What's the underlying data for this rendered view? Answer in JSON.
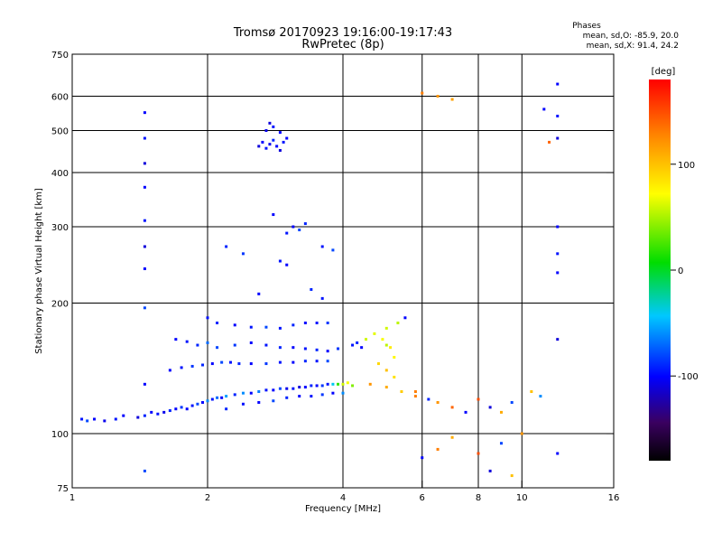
{
  "chart_data": {
    "type": "scatter",
    "title": "Tromsø 20170923 19:16:00-19:17:43",
    "subtitle": "RwPretec (8p)",
    "xlabel": "Frequency [MHz]",
    "ylabel": "Stationary phase Virtual Height [km]",
    "x_scale": "log",
    "y_scale": "log",
    "xlim": [
      1,
      16
    ],
    "ylim": [
      75,
      750
    ],
    "x_ticks": [
      1,
      2,
      4,
      6,
      8,
      10,
      16
    ],
    "y_ticks": [
      75,
      100,
      200,
      300,
      400,
      500,
      600,
      750
    ],
    "x_grid": [
      2,
      4,
      6,
      8,
      10
    ],
    "y_grid": [
      100,
      200,
      300,
      400,
      500,
      600
    ],
    "stats": {
      "heading": "Phases",
      "line1": "mean, sd,O: -85.9, 20.0",
      "line2": "mean, sd,X:  91.4, 24.2"
    },
    "colorbar": {
      "label": "[deg]",
      "range": [
        -180,
        180
      ],
      "ticks": [
        100,
        0,
        -100
      ]
    },
    "series": [
      {
        "points": [
          [
            1.05,
            108,
            -95
          ],
          [
            1.08,
            107,
            -80
          ],
          [
            1.12,
            108,
            -100
          ],
          [
            1.18,
            107,
            -105
          ],
          [
            1.25,
            108,
            -95
          ],
          [
            1.3,
            110,
            -100
          ],
          [
            1.4,
            109,
            -110
          ],
          [
            1.45,
            110,
            -90
          ],
          [
            1.5,
            112,
            -100
          ],
          [
            1.55,
            111,
            -95
          ],
          [
            1.6,
            112,
            -105
          ],
          [
            1.65,
            113,
            -90
          ],
          [
            1.7,
            114,
            -100
          ],
          [
            1.75,
            115,
            -85
          ],
          [
            1.8,
            114,
            -100
          ],
          [
            1.85,
            116,
            -95
          ],
          [
            1.9,
            117,
            -80
          ],
          [
            1.95,
            118,
            -100
          ],
          [
            2.0,
            119,
            -60
          ],
          [
            2.05,
            120,
            -95
          ],
          [
            2.1,
            121,
            -70
          ],
          [
            2.15,
            121,
            -100
          ],
          [
            2.2,
            122,
            -55
          ],
          [
            2.3,
            123,
            -90
          ],
          [
            2.4,
            124,
            -60
          ],
          [
            2.5,
            124,
            -100
          ],
          [
            2.6,
            125,
            -65
          ],
          [
            2.7,
            126,
            -95
          ],
          [
            2.8,
            126,
            -100
          ],
          [
            2.9,
            127,
            -80
          ],
          [
            3.0,
            127,
            -105
          ],
          [
            3.1,
            127,
            -95
          ],
          [
            3.2,
            128,
            -110
          ],
          [
            3.3,
            128,
            -100
          ],
          [
            3.4,
            129,
            -90
          ],
          [
            3.5,
            129,
            -100
          ],
          [
            3.6,
            129,
            -85
          ],
          [
            3.7,
            130,
            -95
          ],
          [
            3.8,
            130,
            -40
          ],
          [
            3.9,
            130,
            20
          ],
          [
            4.0,
            130,
            60
          ],
          [
            4.1,
            131,
            70
          ],
          [
            4.2,
            129,
            40
          ],
          [
            2.2,
            114,
            -90
          ],
          [
            2.4,
            117,
            -95
          ],
          [
            2.6,
            118,
            -100
          ],
          [
            2.8,
            119,
            -80
          ],
          [
            3.0,
            121,
            -90
          ],
          [
            3.2,
            122,
            -100
          ],
          [
            3.4,
            122,
            -95
          ],
          [
            3.6,
            123,
            -85
          ],
          [
            3.8,
            124,
            -100
          ],
          [
            4.0,
            124,
            -60
          ],
          [
            1.65,
            140,
            -100
          ],
          [
            1.75,
            142,
            -95
          ],
          [
            1.85,
            143,
            -85
          ],
          [
            1.95,
            144,
            -90
          ],
          [
            2.05,
            145,
            -100
          ],
          [
            2.15,
            146,
            -80
          ],
          [
            2.25,
            146,
            -95
          ],
          [
            2.35,
            145,
            -90
          ],
          [
            2.5,
            145,
            -100
          ],
          [
            2.7,
            145,
            -85
          ],
          [
            2.9,
            146,
            -95
          ],
          [
            3.1,
            146,
            -100
          ],
          [
            3.3,
            147,
            -90
          ],
          [
            3.5,
            147,
            -95
          ],
          [
            3.7,
            147,
            -80
          ],
          [
            1.7,
            165,
            -100
          ],
          [
            1.8,
            163,
            -95
          ],
          [
            1.9,
            160,
            -90
          ],
          [
            2.0,
            162,
            -70
          ],
          [
            2.1,
            158,
            -80
          ],
          [
            2.3,
            160,
            -85
          ],
          [
            2.5,
            162,
            -100
          ],
          [
            2.7,
            160,
            -95
          ],
          [
            2.9,
            158,
            -90
          ],
          [
            3.1,
            158,
            -100
          ],
          [
            3.3,
            157,
            -95
          ],
          [
            3.5,
            156,
            -90
          ],
          [
            3.7,
            155,
            -100
          ],
          [
            3.9,
            157,
            -85
          ],
          [
            2.0,
            185,
            -95
          ],
          [
            2.1,
            180,
            -90
          ],
          [
            2.3,
            178,
            -100
          ],
          [
            2.5,
            176,
            -95
          ],
          [
            2.7,
            176,
            -80
          ],
          [
            2.9,
            175,
            -95
          ],
          [
            3.1,
            178,
            -90
          ],
          [
            3.3,
            180,
            -100
          ],
          [
            3.5,
            180,
            -95
          ],
          [
            3.7,
            180,
            -85
          ],
          [
            4.2,
            160,
            -95
          ],
          [
            4.3,
            162,
            -90
          ],
          [
            4.4,
            158,
            -100
          ],
          [
            4.5,
            165,
            60
          ],
          [
            4.7,
            170,
            65
          ],
          [
            4.9,
            165,
            70
          ],
          [
            5.0,
            160,
            55
          ],
          [
            5.1,
            158,
            80
          ],
          [
            5.2,
            150,
            75
          ],
          [
            5.0,
            175,
            60
          ],
          [
            5.3,
            180,
            55
          ],
          [
            5.5,
            185,
            -100
          ],
          [
            4.8,
            145,
            90
          ],
          [
            5.0,
            140,
            100
          ],
          [
            5.2,
            135,
            85
          ],
          [
            4.6,
            130,
            120
          ],
          [
            5.0,
            128,
            110
          ],
          [
            5.4,
            125,
            95
          ],
          [
            5.8,
            122,
            130
          ],
          [
            2.6,
            460,
            -110
          ],
          [
            2.65,
            470,
            -100
          ],
          [
            2.7,
            455,
            -95
          ],
          [
            2.75,
            465,
            -105
          ],
          [
            2.8,
            475,
            -90
          ],
          [
            2.85,
            460,
            -100
          ],
          [
            2.9,
            450,
            -110
          ],
          [
            2.95,
            470,
            -95
          ],
          [
            3.0,
            480,
            -100
          ],
          [
            2.7,
            500,
            -105
          ],
          [
            2.8,
            510,
            -95
          ],
          [
            2.9,
            495,
            -100
          ],
          [
            2.75,
            520,
            -110
          ],
          [
            1.45,
            550,
            -100
          ],
          [
            1.45,
            480,
            -95
          ],
          [
            1.45,
            420,
            -110
          ],
          [
            1.45,
            370,
            -100
          ],
          [
            1.45,
            310,
            -95
          ],
          [
            1.45,
            270,
            -110
          ],
          [
            1.45,
            240,
            -100
          ],
          [
            1.45,
            195,
            -80
          ],
          [
            1.45,
            130,
            -100
          ],
          [
            12.0,
            640,
            -100
          ],
          [
            12.0,
            540,
            -95
          ],
          [
            12.0,
            480,
            -110
          ],
          [
            12.0,
            300,
            -100
          ],
          [
            12.0,
            260,
            -95
          ],
          [
            12.0,
            235,
            -100
          ],
          [
            12.0,
            165,
            -110
          ],
          [
            3.0,
            290,
            -95
          ],
          [
            3.1,
            300,
            -100
          ],
          [
            3.2,
            295,
            -80
          ],
          [
            3.3,
            305,
            -90
          ],
          [
            2.8,
            320,
            -100
          ],
          [
            2.9,
            250,
            -95
          ],
          [
            3.0,
            245,
            -100
          ],
          [
            2.2,
            270,
            -90
          ],
          [
            2.4,
            260,
            -85
          ],
          [
            2.6,
            210,
            -100
          ],
          [
            3.6,
            270,
            -95
          ],
          [
            3.8,
            265,
            -80
          ],
          [
            3.4,
            215,
            -90
          ],
          [
            3.6,
            205,
            -95
          ],
          [
            5.8,
            125,
            130
          ],
          [
            6.2,
            120,
            -90
          ],
          [
            6.5,
            118,
            120
          ],
          [
            7.0,
            115,
            140
          ],
          [
            7.5,
            112,
            -100
          ],
          [
            8.0,
            120,
            150
          ],
          [
            8.5,
            115,
            -110
          ],
          [
            9.0,
            112,
            110
          ],
          [
            9.5,
            118,
            -80
          ],
          [
            10.5,
            125,
            100
          ],
          [
            11.0,
            122,
            -60
          ],
          [
            10.0,
            100,
            120
          ],
          [
            9.0,
            95,
            -80
          ],
          [
            8.0,
            90,
            150
          ],
          [
            7.0,
            98,
            110
          ],
          [
            6.5,
            92,
            130
          ],
          [
            6.0,
            88,
            -100
          ],
          [
            8.5,
            82,
            -110
          ],
          [
            9.5,
            80,
            100
          ],
          [
            1.45,
            82,
            -80
          ],
          [
            12.0,
            90,
            -100
          ],
          [
            6.0,
            610,
            130
          ],
          [
            6.5,
            600,
            120
          ],
          [
            7.0,
            590,
            115
          ],
          [
            11.5,
            470,
            140
          ],
          [
            11.2,
            560,
            -100
          ]
        ]
      }
    ]
  }
}
